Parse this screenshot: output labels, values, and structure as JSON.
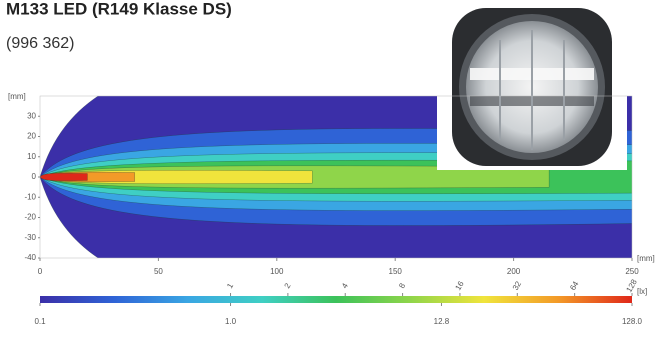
{
  "chart_data": {
    "type": "contour",
    "title": "M133 LED (R149 Klasse DS)",
    "subtitle": "(996 362)",
    "y_label": "[mm]",
    "x_label": "[mm]",
    "xlim": [
      0,
      250
    ],
    "xticks": [
      0,
      50,
      100,
      150,
      200,
      250
    ],
    "ylim": [
      -40,
      40
    ],
    "yticks": [
      30,
      20,
      10,
      0,
      -10,
      -20,
      -30,
      -40
    ],
    "colorbar": {
      "label": "[lx]",
      "log": true,
      "lim": [
        0.1,
        128
      ],
      "ticks": [
        0.1,
        {
          "value": 1,
          "label": "1.0"
        },
        12.8,
        {
          "value": 128,
          "label": "128.0"
        }
      ],
      "levels": [
        1,
        2,
        4,
        8,
        16,
        32,
        64,
        128
      ],
      "colormap": [
        "#3b2fa8",
        "#2f63d6",
        "#3aa6e3",
        "#3fcfc4",
        "#3cc25a",
        "#8fd54a",
        "#f0e43c",
        "#f39a28",
        "#e0281a"
      ]
    }
  }
}
